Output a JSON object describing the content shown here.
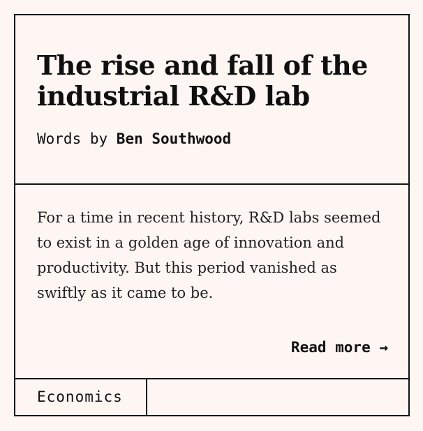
{
  "card": {
    "title": "The rise and fall of the industrial R&D lab",
    "byline_prefix": "Words by ",
    "author": "Ben Southwood",
    "excerpt": "For a time in recent history, R&D labs seemed to exist in a golden age of innovation and productivity. But this period vanished as swiftly as it came to be.",
    "read_more_label": "Read more →",
    "tag": "Economics"
  },
  "colors": {
    "background": "#fdf6f2",
    "ink": "#111111"
  }
}
